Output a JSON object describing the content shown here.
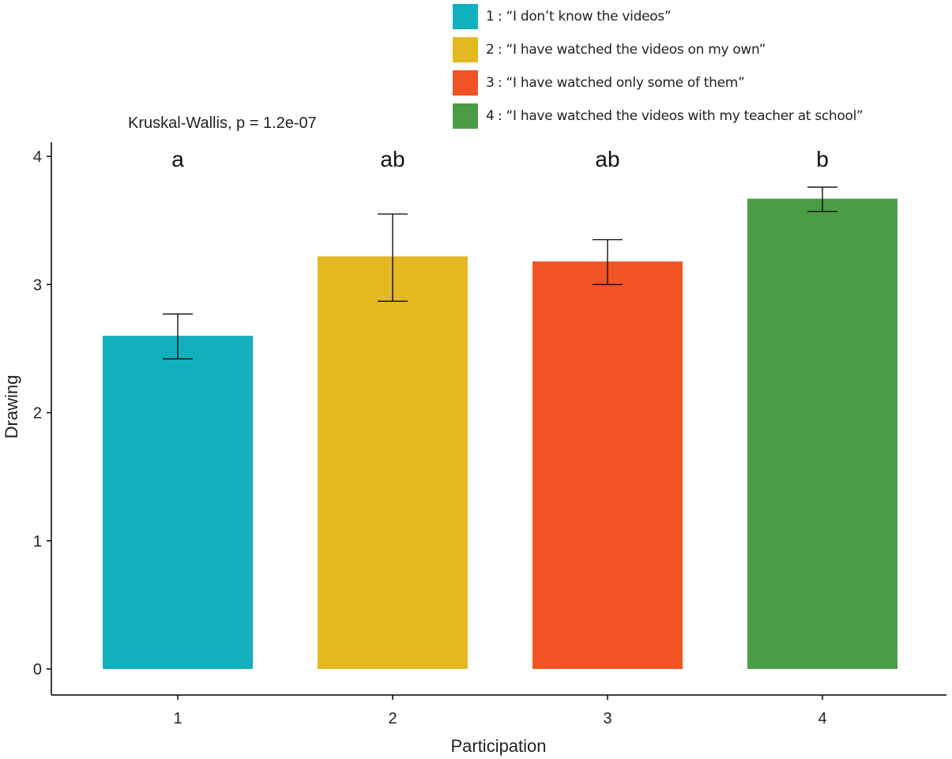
{
  "chart_data": {
    "type": "bar",
    "title": "Kruskal-Wallis, p = 1.2e-07",
    "xlabel": "Participation",
    "ylabel": "Drawing",
    "categories": [
      "1",
      "2",
      "3",
      "4"
    ],
    "values": [
      2.6,
      3.22,
      3.18,
      3.67
    ],
    "error_low": [
      2.42,
      2.87,
      3.0,
      3.57
    ],
    "error_high": [
      2.77,
      3.55,
      3.35,
      3.76
    ],
    "group_letters": [
      "a",
      "ab",
      "ab",
      "b"
    ],
    "colors": [
      "#12b0bd",
      "#e4b820",
      "#f15325",
      "#4a9d44"
    ],
    "ylim": [
      0,
      4
    ],
    "yticks": [
      0,
      1,
      2,
      3,
      4
    ],
    "grid": false,
    "legend_placement": "top-right",
    "legend": [
      {
        "key": "1",
        "label": ": “I don’t know the videos”"
      },
      {
        "key": "2",
        "label": ": “I have watched the videos on my own”"
      },
      {
        "key": "3",
        "label": ": “I have watched only some of them”"
      },
      {
        "key": "4",
        "label": ": “I have watched the videos with my teacher at school”"
      }
    ]
  }
}
